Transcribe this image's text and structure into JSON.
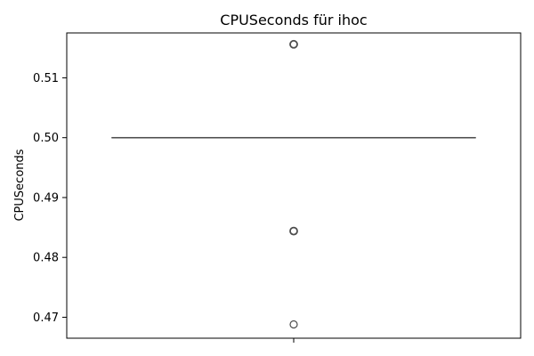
{
  "chart_data": {
    "type": "box",
    "title": "CPUSeconds für ihoc",
    "xlabel": "",
    "ylabel": "CPUSeconds",
    "ylim": [
      0.4665,
      0.5175
    ],
    "yticks": [
      0.47,
      0.48,
      0.49,
      0.5,
      0.51
    ],
    "ytick_labels": [
      "0.47",
      "0.48",
      "0.49",
      "0.50",
      "0.51"
    ],
    "box": {
      "q1": 0.5,
      "median": 0.5,
      "q3": 0.5,
      "whisker_low": 0.5,
      "whisker_high": 0.5
    },
    "outliers": [
      0.5156,
      0.4844,
      0.4688
    ],
    "grid": false
  },
  "colors": {
    "axes": "#000000",
    "box": "#4d4d4d",
    "outlier_edge": "#4d4d4d"
  }
}
